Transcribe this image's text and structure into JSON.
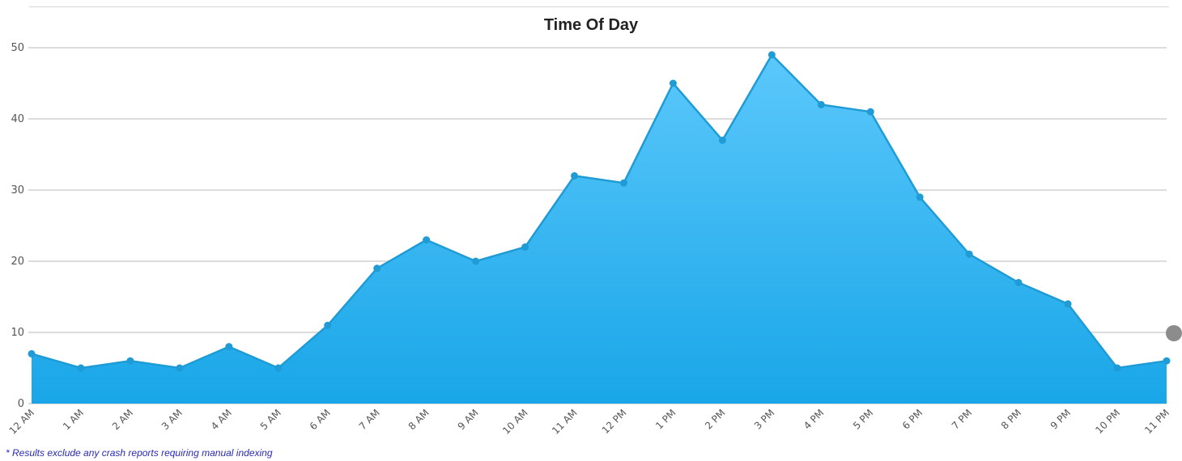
{
  "chart_data": {
    "type": "area",
    "title": "Time Of Day",
    "categories": [
      "12 AM",
      "1 AM",
      "2 AM",
      "3 AM",
      "4 AM",
      "5 AM",
      "6 AM",
      "7 AM",
      "8 AM",
      "9 AM",
      "10 AM",
      "11 AM",
      "12 PM",
      "1 PM",
      "2 PM",
      "3 PM",
      "4 PM",
      "5 PM",
      "6 PM",
      "7 PM",
      "8 PM",
      "9 PM",
      "10 PM",
      "11 PM"
    ],
    "values": [
      7,
      5,
      6,
      5,
      8,
      5,
      11,
      19,
      23,
      20,
      22,
      32,
      31,
      45,
      37,
      49,
      42,
      41,
      29,
      21,
      17,
      14,
      5,
      6
    ],
    "yticks": [
      "0",
      "10",
      "20",
      "30",
      "40",
      "50"
    ],
    "ylim": [
      0,
      50
    ],
    "xlabel": "",
    "ylabel": "",
    "grid": true,
    "colors": {
      "line": "#1f9bd6",
      "fill_top": "#5bc8fb",
      "fill_bottom": "#19a6e8",
      "grid": "#dcdcdc"
    }
  },
  "footnote": "* Results exclude any crash reports requiring manual indexing"
}
